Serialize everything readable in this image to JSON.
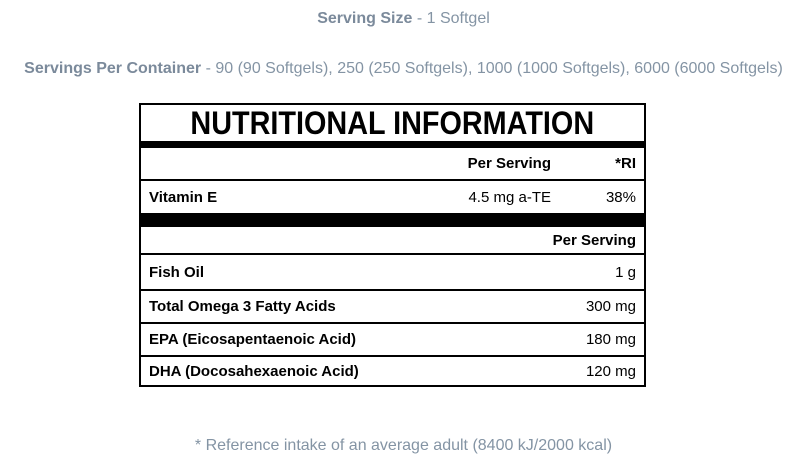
{
  "colors": {
    "muted_text": "#8494a4",
    "muted_text_bold": "#7b8a9b",
    "table_text": "#000000",
    "table_border": "#000000"
  },
  "header": {
    "serving_size_label": "Serving Size",
    "serving_size_value": " - 1 Softgel",
    "servings_per_container_label": "Servings Per Container",
    "servings_per_container_value": " - 90 (90 Softgels), 250 (250 Softgels), 1000 (1000 Softgels), 6000 (6000 Softgels)"
  },
  "table": {
    "title": "NUTRITIONAL INFORMATION",
    "section1": {
      "col_per_serving": "Per Serving",
      "col_ri": "*RI",
      "rows": [
        {
          "name": "Vitamin E",
          "per_serving": "4.5 mg a-TE",
          "ri": "38%"
        }
      ]
    },
    "section2": {
      "col_per_serving": "Per Serving",
      "rows": [
        {
          "name": "Fish Oil",
          "per_serving": "1 g"
        },
        {
          "name": "Total Omega 3 Fatty Acids",
          "per_serving": "300 mg"
        },
        {
          "name": "EPA (Eicosapentaenoic Acid)",
          "per_serving": "180 mg"
        },
        {
          "name": "DHA (Docosahexaenoic Acid)",
          "per_serving": "120 mg"
        }
      ]
    }
  },
  "footnote": "* Reference intake of an average adult (8400 kJ/2000 kcal)"
}
